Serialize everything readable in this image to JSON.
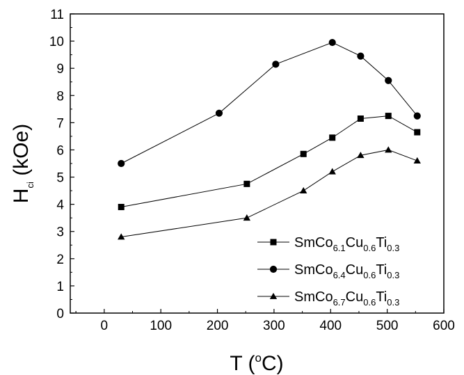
{
  "chart_data": {
    "type": "line",
    "xlabel": {
      "main": "T (",
      "sup": "o",
      "end": "C)"
    },
    "ylabel": {
      "main": "H",
      "sub": "ci",
      "end": " (kOe)"
    },
    "xlim": [
      -60,
      600
    ],
    "ylim": [
      0,
      11
    ],
    "xticks": [
      0,
      100,
      200,
      300,
      400,
      500,
      600
    ],
    "yticks": [
      0,
      1,
      2,
      3,
      4,
      5,
      6,
      7,
      8,
      9,
      10,
      11
    ],
    "grid": false,
    "legend_position": "bottom-right",
    "series": [
      {
        "name": "SmCo6.1Cu0.6Ti0.3",
        "name_parts": [
          {
            "t": "SmCo",
            "s": false
          },
          {
            "t": "6.1",
            "s": true
          },
          {
            "t": "Cu",
            "s": false
          },
          {
            "t": "0.6",
            "s": true
          },
          {
            "t": "Ti",
            "s": false
          },
          {
            "t": "0.3",
            "s": true
          }
        ],
        "marker": "square",
        "points": [
          [
            30,
            3.9
          ],
          [
            252,
            4.75
          ],
          [
            352,
            5.85
          ],
          [
            403,
            6.45
          ],
          [
            453,
            7.15
          ],
          [
            502,
            7.25
          ],
          [
            553,
            6.65
          ]
        ]
      },
      {
        "name": "SmCo6.4Cu0.6Ti0.3",
        "name_parts": [
          {
            "t": "SmCo",
            "s": false
          },
          {
            "t": "6.4",
            "s": true
          },
          {
            "t": "Cu",
            "s": false
          },
          {
            "t": "0.6",
            "s": true
          },
          {
            "t": "Ti",
            "s": false
          },
          {
            "t": "0.3",
            "s": true
          }
        ],
        "marker": "circle",
        "points": [
          [
            30,
            5.5
          ],
          [
            203,
            7.35
          ],
          [
            303,
            9.15
          ],
          [
            403,
            9.95
          ],
          [
            453,
            9.45
          ],
          [
            502,
            8.55
          ],
          [
            553,
            7.25
          ]
        ]
      },
      {
        "name": "SmCo6.7Cu0.6Ti0.3",
        "name_parts": [
          {
            "t": "SmCo",
            "s": false
          },
          {
            "t": "6.7",
            "s": true
          },
          {
            "t": "Cu",
            "s": false
          },
          {
            "t": "0.6",
            "s": true
          },
          {
            "t": "Ti",
            "s": false
          },
          {
            "t": "0.3",
            "s": true
          }
        ],
        "marker": "triangle",
        "points": [
          [
            30,
            2.8
          ],
          [
            252,
            3.5
          ],
          [
            352,
            4.5
          ],
          [
            403,
            5.2
          ],
          [
            453,
            5.8
          ],
          [
            502,
            6.0
          ],
          [
            553,
            5.6
          ]
        ]
      }
    ]
  }
}
